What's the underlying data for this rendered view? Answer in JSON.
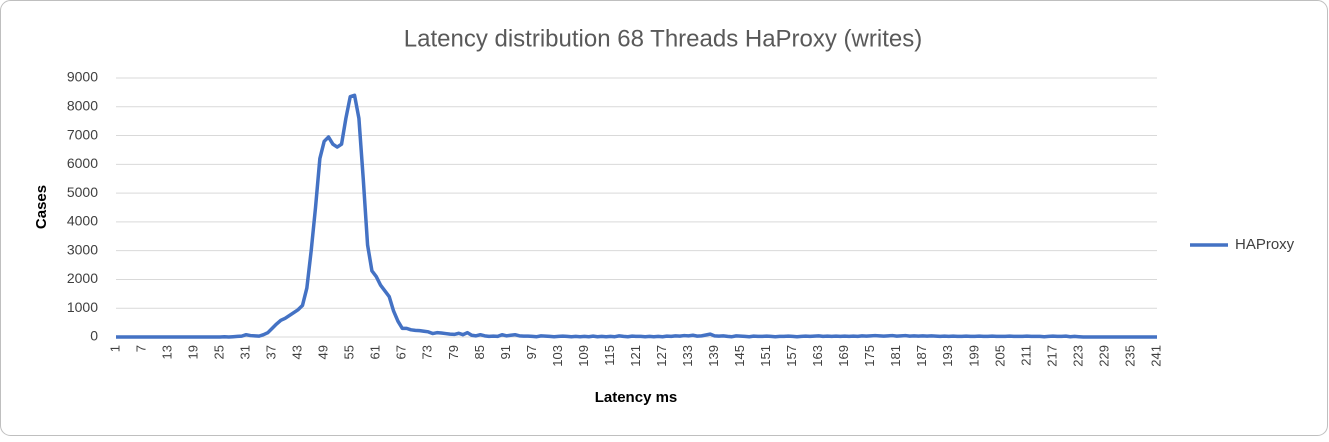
{
  "chart_data": {
    "type": "line",
    "title": "Latency distribution 68 Threads HaProxy (writes)",
    "x_label": "Latency ms",
    "y_label": "Cases",
    "x": [
      1,
      2,
      3,
      4,
      5,
      6,
      7,
      8,
      9,
      10,
      11,
      12,
      13,
      14,
      15,
      16,
      17,
      18,
      19,
      20,
      21,
      22,
      23,
      24,
      25,
      26,
      27,
      28,
      29,
      30,
      31,
      32,
      33,
      34,
      35,
      36,
      37,
      38,
      39,
      40,
      41,
      42,
      43,
      44,
      45,
      46,
      47,
      48,
      49,
      50,
      51,
      52,
      53,
      54,
      55,
      56,
      57,
      58,
      59,
      60,
      61,
      62,
      63,
      64,
      65,
      66,
      67,
      68,
      69,
      70,
      71,
      72,
      73,
      74,
      75,
      76,
      77,
      78,
      79,
      80,
      81,
      82,
      83,
      84,
      85,
      86,
      87,
      88,
      89,
      90,
      91,
      92,
      93,
      94,
      95,
      96,
      97,
      98,
      99,
      100,
      101,
      102,
      103,
      104,
      105,
      106,
      107,
      108,
      109,
      110,
      111,
      112,
      113,
      114,
      115,
      116,
      117,
      118,
      119,
      120,
      121,
      122,
      123,
      124,
      125,
      126,
      127,
      128,
      129,
      130,
      131,
      132,
      133,
      134,
      135,
      136,
      137,
      138,
      139,
      140,
      141,
      142,
      143,
      144,
      145,
      146,
      147,
      148,
      149,
      150,
      151,
      152,
      153,
      154,
      155,
      156,
      157,
      158,
      159,
      160,
      161,
      162,
      163,
      164,
      165,
      166,
      167,
      168,
      169,
      170,
      171,
      172,
      173,
      174,
      175,
      176,
      177,
      178,
      179,
      180,
      181,
      182,
      183,
      184,
      185,
      186,
      187,
      188,
      189,
      190,
      191,
      192,
      193,
      194,
      195,
      196,
      197,
      198,
      199,
      200,
      201,
      202,
      203,
      204,
      205,
      206,
      207,
      208,
      209,
      210,
      211,
      212,
      213,
      214,
      215,
      216,
      217,
      218,
      219,
      220,
      221,
      222,
      223,
      224,
      225,
      226,
      227,
      228,
      229,
      230,
      231,
      232,
      233,
      234,
      235,
      236,
      237,
      238,
      239,
      240,
      241
    ],
    "series": [
      {
        "name": "HAProxy",
        "color": "#4472c4",
        "values": [
          0,
          0,
          0,
          0,
          0,
          0,
          0,
          0,
          0,
          0,
          0,
          0,
          0,
          0,
          0,
          0,
          0,
          0,
          0,
          0,
          0,
          0,
          0,
          0,
          0,
          10,
          0,
          10,
          20,
          30,
          80,
          50,
          40,
          30,
          80,
          150,
          300,
          450,
          580,
          650,
          750,
          850,
          950,
          1100,
          1700,
          3000,
          4500,
          6200,
          6800,
          6950,
          6700,
          6600,
          6700,
          7600,
          8350,
          8400,
          7600,
          5500,
          3200,
          2300,
          2100,
          1800,
          1600,
          1400,
          900,
          550,
          300,
          300,
          250,
          230,
          220,
          200,
          180,
          120,
          150,
          140,
          120,
          100,
          90,
          130,
          80,
          150,
          60,
          40,
          80,
          40,
          20,
          30,
          20,
          80,
          40,
          60,
          80,
          40,
          30,
          30,
          20,
          10,
          40,
          30,
          20,
          10,
          20,
          30,
          20,
          10,
          20,
          10,
          20,
          10,
          30,
          10,
          20,
          10,
          20,
          10,
          40,
          20,
          10,
          30,
          20,
          20,
          10,
          20,
          10,
          20,
          10,
          30,
          20,
          40,
          30,
          50,
          40,
          60,
          30,
          40,
          70,
          100,
          40,
          30,
          40,
          20,
          10,
          40,
          30,
          20,
          10,
          30,
          20,
          20,
          30,
          20,
          10,
          20,
          20,
          30,
          20,
          10,
          20,
          30,
          20,
          30,
          40,
          20,
          30,
          20,
          30,
          20,
          30,
          20,
          30,
          20,
          40,
          30,
          40,
          50,
          40,
          30,
          40,
          50,
          30,
          40,
          50,
          30,
          40,
          30,
          40,
          30,
          40,
          30,
          20,
          30,
          20,
          30,
          20,
          20,
          30,
          20,
          20,
          30,
          20,
          20,
          30,
          20,
          20,
          20,
          30,
          20,
          20,
          20,
          30,
          20,
          20,
          20,
          10,
          20,
          30,
          20,
          20,
          30,
          10,
          20,
          10,
          0,
          0,
          0,
          0,
          0,
          0,
          0,
          0,
          0,
          0,
          0,
          0,
          0,
          0,
          0,
          0,
          0,
          0
        ]
      }
    ],
    "xlim": [
      1,
      241
    ],
    "xticks": [
      1,
      7,
      13,
      19,
      25,
      31,
      37,
      43,
      49,
      55,
      61,
      67,
      73,
      79,
      85,
      91,
      97,
      103,
      109,
      115,
      121,
      127,
      133,
      139,
      145,
      151,
      157,
      163,
      169,
      175,
      181,
      187,
      193,
      199,
      205,
      211,
      217,
      223,
      229,
      235,
      241
    ],
    "ylim": [
      0,
      9000
    ],
    "yticks": [
      0,
      1000,
      2000,
      3000,
      4000,
      5000,
      6000,
      7000,
      8000,
      9000
    ],
    "grid": true,
    "legend": "right"
  }
}
